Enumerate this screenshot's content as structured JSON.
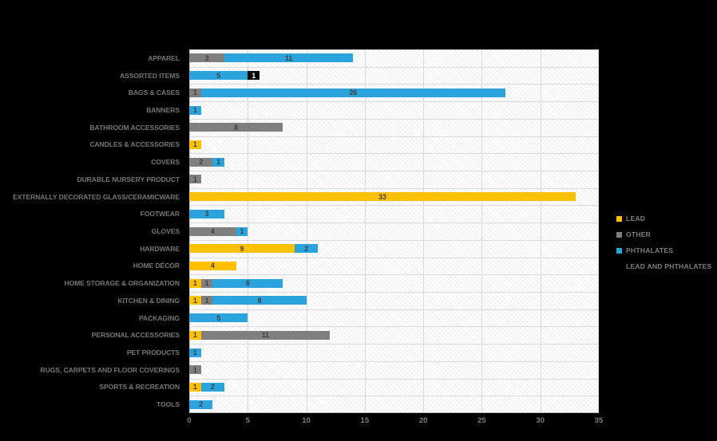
{
  "chart": {
    "background_color": "#000000",
    "plot_background_color": "#ffffff",
    "gridline_color": "#d9d9d9"
  },
  "chart_data": {
    "type": "bar",
    "orientation": "horizontal_stacked",
    "title": "",
    "xlabel": "",
    "ylabel": "",
    "xlim": [
      0,
      35
    ],
    "xticks": [
      0,
      5,
      10,
      15,
      20,
      25,
      30,
      35
    ],
    "grid": true,
    "legend_position": "right",
    "categories": [
      "APPAREL",
      "ASSORTED ITEMS",
      "BAGS & CASES",
      "BANNERS",
      "BATHROOM ACCESSORIES",
      "CANDLES & ACCESSORIES",
      "COVERS",
      "DURABLE NURSERY PRODUCT",
      "EXTERNALLY DECORATED GLASS/CERAMICWARE",
      "FOOTWEAR",
      "GLOVES",
      "HARDWARE",
      "HOME DÉCOR",
      "HOME STORAGE & ORGANIZATION",
      "KITCHEN & DINING",
      "PACKAGING",
      "PERSONAL ACCESSORIES",
      "PET PRODUCTS",
      "RUGS, CARPETS AND FLOOR COVERINGS",
      "SPORTS & RECREATION",
      "TOOLS"
    ],
    "series": [
      {
        "name": "LEAD",
        "color": "#FFC000",
        "label_color": "#404040",
        "values": [
          0,
          0,
          0,
          0,
          0,
          1,
          0,
          0,
          33,
          0,
          0,
          9,
          4,
          1,
          1,
          0,
          1,
          0,
          0,
          1,
          0
        ]
      },
      {
        "name": "OTHER",
        "color": "#7F7F7F",
        "label_color": "#404040",
        "values": [
          3,
          0,
          1,
          0,
          8,
          0,
          2,
          1,
          0,
          0,
          4,
          0,
          0,
          1,
          1,
          0,
          11,
          0,
          1,
          0,
          0
        ]
      },
      {
        "name": "PHTHALATES",
        "color": "#2BA3DC",
        "label_color": "#404040",
        "values": [
          11,
          5,
          26,
          1,
          0,
          0,
          1,
          0,
          0,
          3,
          1,
          2,
          0,
          6,
          8,
          5,
          0,
          1,
          0,
          2,
          2
        ]
      },
      {
        "name": "LEAD AND PHTHALATES",
        "color": "#000000",
        "label_color": "#FFFFFF",
        "values": [
          0,
          1,
          0,
          0,
          0,
          0,
          0,
          0,
          0,
          0,
          0,
          0,
          0,
          0,
          0,
          0,
          0,
          0,
          0,
          0,
          0
        ]
      }
    ]
  }
}
